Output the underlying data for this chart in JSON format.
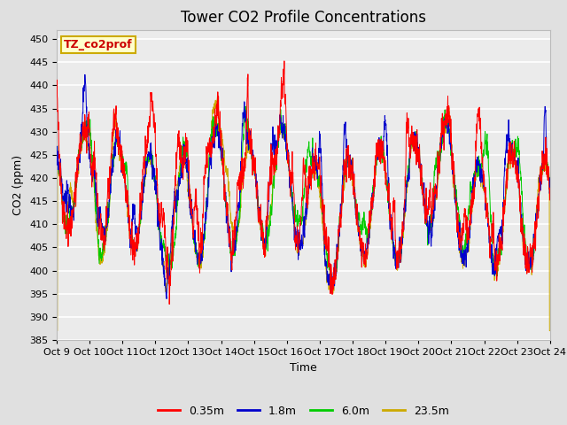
{
  "title": "Tower CO2 Profile Concentrations",
  "xlabel": "Time",
  "ylabel": "CO2 (ppm)",
  "ylim": [
    385,
    452
  ],
  "yticks": [
    385,
    390,
    395,
    400,
    405,
    410,
    415,
    420,
    425,
    430,
    435,
    440,
    445,
    450
  ],
  "series_labels": [
    "0.35m",
    "1.8m",
    "6.0m",
    "23.5m"
  ],
  "series_colors": [
    "#ff0000",
    "#0000cc",
    "#00cc00",
    "#ccaa00"
  ],
  "annotation_text": "TZ_co2prof",
  "annotation_color": "#cc0000",
  "annotation_bg": "#ffffcc",
  "annotation_border": "#ccaa00",
  "background_color": "#e0e0e0",
  "plot_bg": "#ebebeb",
  "n_days": 15,
  "points_per_day": 144,
  "x_tick_labels": [
    "Oct 9",
    "Oct 10",
    "Oct 11",
    "Oct 12",
    "Oct 13",
    "Oct 14",
    "Oct 15",
    "Oct 16",
    "Oct 17",
    "Oct 18",
    "Oct 19",
    "Oct 20",
    "Oct 21",
    "Oct 22",
    "Oct 23",
    "Oct 24"
  ],
  "title_fontsize": 12,
  "axis_label_fontsize": 9,
  "tick_fontsize": 8,
  "legend_fontsize": 9,
  "linewidth": 0.7
}
